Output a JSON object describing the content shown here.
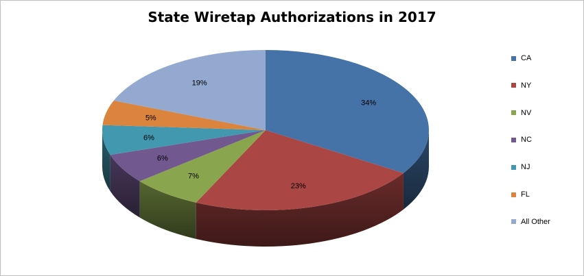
{
  "chart_data": {
    "type": "pie",
    "title": "State Wiretap Authorizations in 2017",
    "slices": [
      {
        "label": "CA",
        "value": 34,
        "display": "34%",
        "color": "#4572A7"
      },
      {
        "label": "NY",
        "value": 23,
        "display": "23%",
        "color": "#AA4643"
      },
      {
        "label": "NV",
        "value": 7,
        "display": "7%",
        "color": "#89A54E"
      },
      {
        "label": "NC",
        "value": 6,
        "display": "6%",
        "color": "#71588F"
      },
      {
        "label": "NJ",
        "value": 6,
        "display": "6%",
        "color": "#4198AF"
      },
      {
        "label": "FL",
        "value": 5,
        "display": "5%",
        "color": "#DB843D"
      },
      {
        "label": "All Other",
        "value": 19,
        "display": "19%",
        "color": "#93A9CF"
      }
    ],
    "legend_position": "right",
    "style": "3d"
  }
}
